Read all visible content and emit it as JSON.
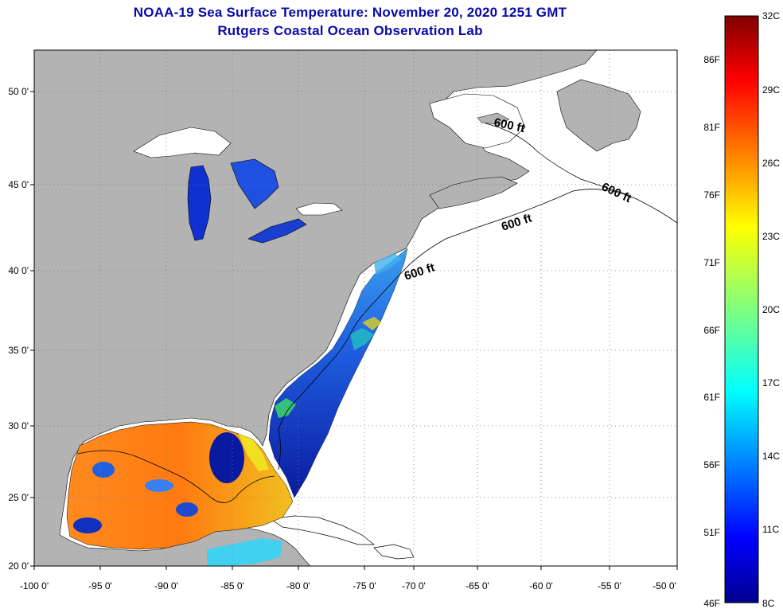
{
  "title": "NOAA-19 Sea Surface Temperature:  November 20, 2020 1251 GMT",
  "subtitle": "Rutgers Coastal Ocean Observation Lab",
  "lon_ticks": [
    "-100 0'",
    "-95 0'",
    "-90 0'",
    "-85 0'",
    "-80 0'",
    "-75 0'",
    "-70 0'",
    "-65 0'",
    "-60 0'",
    "-55 0'",
    "-50 0'"
  ],
  "lat_ticks": [
    "50 0'",
    "45 0'",
    "40 0'",
    "35 0'",
    "30 0'",
    "25 0'",
    "20 0'"
  ],
  "depth_labels": [
    "600 ft",
    "600 ft",
    "600 ft",
    "600 ft"
  ],
  "colorbar": {
    "left_labels": [
      "86F",
      "81F",
      "76F",
      "71F",
      "66F",
      "61F",
      "56F",
      "51F",
      "46F"
    ],
    "right_labels": [
      "32C",
      "29C",
      "26C",
      "23C",
      "20C",
      "17C",
      "14C",
      "11C",
      "8C"
    ]
  },
  "colors": {
    "title": "#0a0aa8",
    "land": "#b3b3b3",
    "ocean_nodata": "#ffffff",
    "cold": "#00008f",
    "hot": "#800000"
  }
}
